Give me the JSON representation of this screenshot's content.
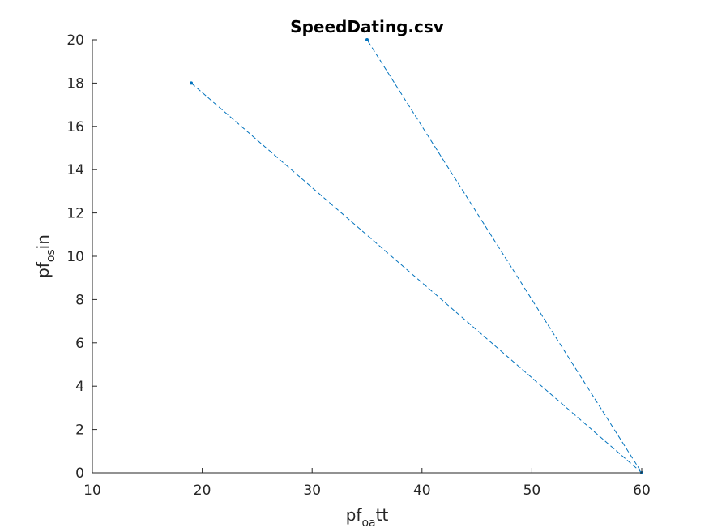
{
  "chart_data": {
    "type": "line",
    "title": "SpeedDating.csv",
    "xlabel": {
      "base": "pf",
      "sub": "oa",
      "rest": "tt"
    },
    "ylabel": {
      "base": "pf",
      "sub": "os",
      "rest": "in"
    },
    "xlim": [
      10,
      60
    ],
    "ylim": [
      0,
      20
    ],
    "xticks": [
      10,
      20,
      30,
      40,
      50,
      60
    ],
    "yticks": [
      0,
      2,
      4,
      6,
      8,
      10,
      12,
      14,
      16,
      18,
      20
    ],
    "grid": false,
    "series": [
      {
        "color": "#0072BD",
        "line_style": "dashed",
        "marker": "dot",
        "x": [
          19,
          60,
          35
        ],
        "y": [
          18,
          0,
          20
        ]
      }
    ]
  }
}
